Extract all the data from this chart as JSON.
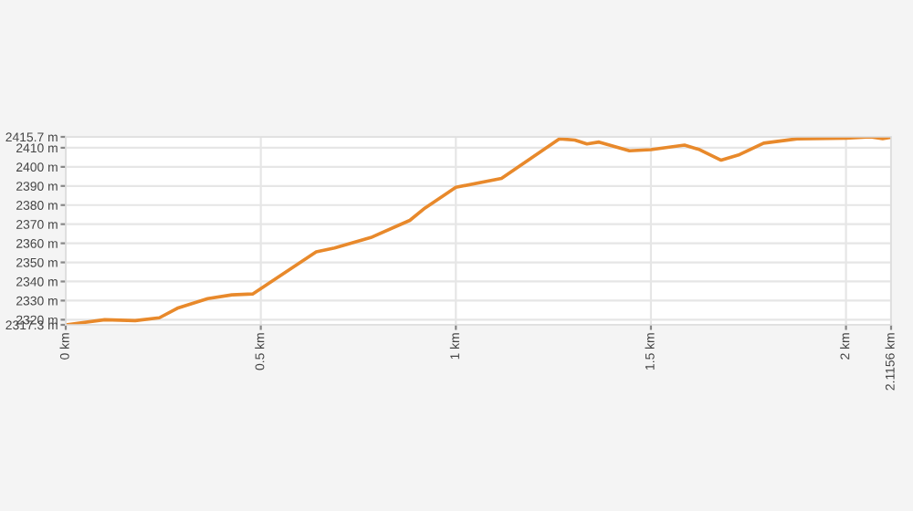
{
  "chart_data": {
    "type": "line",
    "x": [
      0,
      0.1,
      0.178,
      0.24,
      0.286,
      0.364,
      0.426,
      0.48,
      0.642,
      0.689,
      0.782,
      0.882,
      0.921,
      1.0,
      1.117,
      1.266,
      1.305,
      1.336,
      1.367,
      1.445,
      1.5,
      1.586,
      1.625,
      1.68,
      1.727,
      1.789,
      1.875,
      2.0,
      2.0625,
      2.094,
      2.1156
    ],
    "series": [
      {
        "color": "#e8892b",
        "values": [
          2317.3,
          2320,
          2319.5,
          2321,
          2326,
          2331,
          2333,
          2333.5,
          2355.5,
          2357.5,
          2363,
          2372,
          2378.5,
          2389.3,
          2394,
          2414.7,
          2414,
          2412,
          2413,
          2408.4,
          2409,
          2411.4,
          2409,
          2403.5,
          2406.4,
          2412.4,
          2414.7,
          2415,
          2415.7,
          2414.8,
          2415.5
        ]
      }
    ],
    "xlim": [
      0,
      2.1156
    ],
    "ylim": [
      2317.3,
      2415.7
    ],
    "xticks": [
      {
        "value": 0,
        "label": "0 km"
      },
      {
        "value": 0.5,
        "label": "0.5 km"
      },
      {
        "value": 1,
        "label": "1 km"
      },
      {
        "value": 1.5,
        "label": "1.5 km"
      },
      {
        "value": 2,
        "label": "2 km"
      },
      {
        "value": 2.1156,
        "label": "2.1156 km"
      }
    ],
    "yticks": [
      {
        "value": 2317.3,
        "label": "2317.3 m"
      },
      {
        "value": 2320,
        "label": "2320 m"
      },
      {
        "value": 2330,
        "label": "2330 m"
      },
      {
        "value": 2340,
        "label": "2340 m"
      },
      {
        "value": 2350,
        "label": "2350 m"
      },
      {
        "value": 2360,
        "label": "2360 m"
      },
      {
        "value": 2370,
        "label": "2370 m"
      },
      {
        "value": 2380,
        "label": "2380 m"
      },
      {
        "value": 2390,
        "label": "2390 m"
      },
      {
        "value": 2400,
        "label": "2400 m"
      },
      {
        "value": 2410,
        "label": "2410 m"
      },
      {
        "value": 2415.7,
        "label": "2415.7 m"
      }
    ],
    "grid": true,
    "marker": "none",
    "line_style": "solid"
  }
}
